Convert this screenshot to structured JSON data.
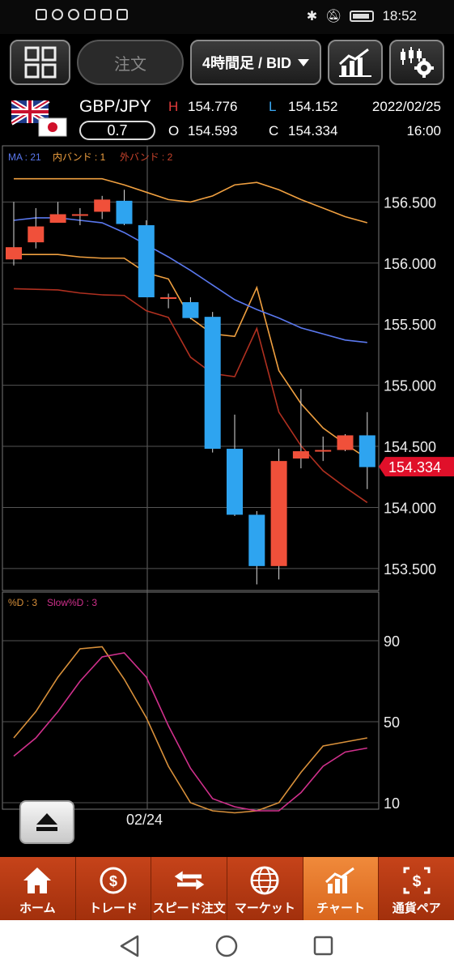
{
  "status_bar": {
    "time": "18:52",
    "icons": [
      "alert-icon",
      "wifi-icon",
      "g-icon",
      "youtube-icon",
      "gmail-icon",
      "store-icon"
    ],
    "right_icons": [
      "bluetooth-icon",
      "mute-icon",
      "battery-icon"
    ]
  },
  "toolbar": {
    "menu_icon": "grid-icon",
    "order_label": "注文",
    "period_label": "4時間足 / BID",
    "chart_type_icon": "chart-icon",
    "settings_icon": "chart-settings-icon"
  },
  "quote": {
    "pair": "GBP/JPY",
    "spread": "0.7",
    "h_label": "H",
    "h_value": "154.776",
    "l_label": "L",
    "l_value": "154.152",
    "o_label": "O",
    "o_value": "154.593",
    "c_label": "C",
    "c_value": "154.334",
    "date": "2022/02/25",
    "time": "16:00"
  },
  "main_chart": {
    "legend": {
      "ma": "MA : 21",
      "inner_band": "内バンド : 1",
      "outer_band": "外バンド : 2"
    },
    "price_ticks": [
      "156.500",
      "156.000",
      "155.500",
      "155.000",
      "154.500",
      "154.000",
      "153.500"
    ],
    "current_price": "154.334",
    "colors": {
      "up": "#f0503a",
      "down": "#2ea4f0",
      "ma": "#5a78ee",
      "inner": "#f0a040",
      "outer": "#b03020",
      "price_tag": "#e0102a"
    }
  },
  "stoch_chart": {
    "legend": {
      "d": "%D : 3",
      "slow_d": "Slow%D : 3"
    },
    "ticks": [
      "90",
      "50",
      "10"
    ],
    "colors": {
      "d": "#d8903a",
      "slow_d": "#d0308c"
    }
  },
  "date_label": "02/24",
  "nav": [
    {
      "label": "ホーム",
      "icon": "home-icon"
    },
    {
      "label": "トレード",
      "icon": "trade-icon"
    },
    {
      "label": "スピード注文",
      "icon": "speed-order-icon"
    },
    {
      "label": "マーケット",
      "icon": "market-icon"
    },
    {
      "label": "チャート",
      "icon": "chart-icon",
      "active": true
    },
    {
      "label": "通貨ペア",
      "icon": "currency-pair-icon"
    }
  ],
  "chart_data": {
    "type": "candlestick",
    "candles": [
      {
        "o": 156.03,
        "h": 156.5,
        "l": 155.98,
        "c": 156.13
      },
      {
        "o": 156.17,
        "h": 156.45,
        "l": 156.12,
        "c": 156.3
      },
      {
        "o": 156.33,
        "h": 156.5,
        "l": 156.33,
        "c": 156.4
      },
      {
        "o": 156.39,
        "h": 156.45,
        "l": 156.31,
        "c": 156.4
      },
      {
        "o": 156.42,
        "h": 156.55,
        "l": 156.36,
        "c": 156.52
      },
      {
        "o": 156.51,
        "h": 156.6,
        "l": 156.31,
        "c": 156.32
      },
      {
        "o": 156.31,
        "h": 156.35,
        "l": 155.72,
        "c": 155.72
      },
      {
        "o": 155.72,
        "h": 155.75,
        "l": 155.63,
        "c": 155.72
      },
      {
        "o": 155.68,
        "h": 155.72,
        "l": 155.54,
        "c": 155.55
      },
      {
        "o": 155.56,
        "h": 155.6,
        "l": 154.45,
        "c": 154.48
      },
      {
        "o": 154.48,
        "h": 154.76,
        "l": 153.93,
        "c": 153.94
      },
      {
        "o": 153.94,
        "h": 153.97,
        "l": 153.37,
        "c": 153.52
      },
      {
        "o": 153.52,
        "h": 154.48,
        "l": 153.41,
        "c": 154.38
      },
      {
        "o": 154.4,
        "h": 154.97,
        "l": 154.32,
        "c": 154.46
      },
      {
        "o": 154.46,
        "h": 154.58,
        "l": 154.38,
        "c": 154.47
      },
      {
        "o": 154.47,
        "h": 154.6,
        "l": 154.46,
        "c": 154.59
      },
      {
        "o": 154.59,
        "h": 154.78,
        "l": 154.15,
        "c": 154.33
      }
    ],
    "ma": [
      156.35,
      156.37,
      156.37,
      156.35,
      156.33,
      156.25,
      156.15,
      156.05,
      155.94,
      155.82,
      155.7,
      155.62,
      155.55,
      155.47,
      155.42,
      155.37,
      155.35
    ],
    "inner_upper": [
      156.69,
      156.69,
      156.69,
      156.69,
      156.69,
      156.64,
      156.58,
      156.52,
      156.5,
      156.55,
      156.64,
      156.66,
      156.6,
      156.52,
      156.45,
      156.38,
      156.33
    ],
    "inner_lower": [
      156.07,
      156.07,
      156.07,
      156.05,
      156.04,
      156.04,
      155.92,
      155.87,
      155.55,
      155.42,
      155.4,
      155.8,
      155.12,
      154.85,
      154.65,
      154.52,
      154.4
    ],
    "stoch_d": [
      42,
      55,
      72,
      86,
      87,
      71,
      52,
      28,
      10,
      6,
      5,
      6,
      10,
      25,
      38,
      40,
      42
    ],
    "stoch_slow_d": [
      33,
      42,
      55,
      70,
      82,
      84,
      72,
      48,
      27,
      12,
      8,
      6,
      6,
      15,
      28,
      35,
      37
    ],
    "stoch_ylim": [
      0,
      100
    ]
  }
}
